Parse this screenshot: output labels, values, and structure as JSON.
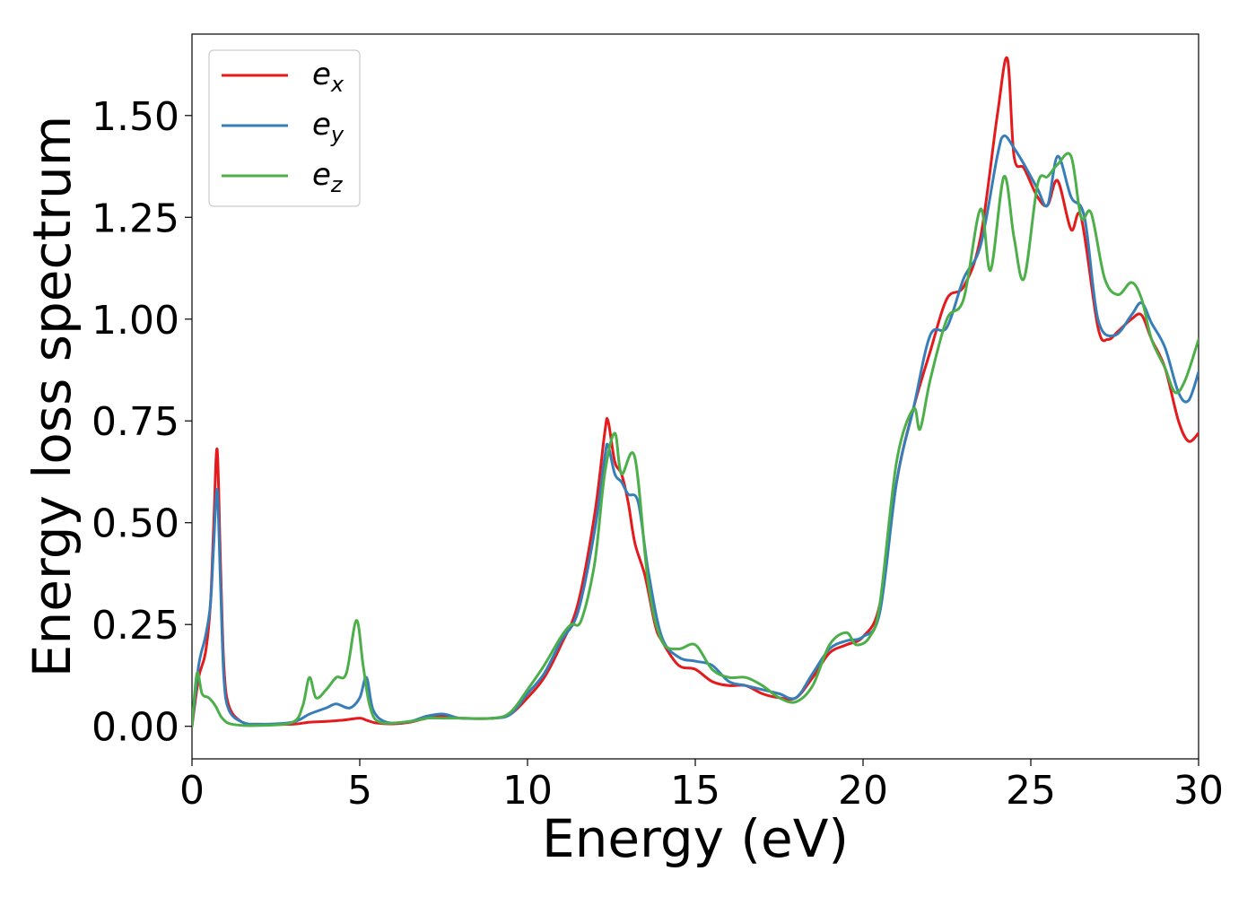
{
  "chart_data": {
    "type": "line",
    "xlabel": "Energy (eV)",
    "ylabel": "Energy loss spectrum",
    "xlim": [
      0,
      30
    ],
    "ylim": [
      -0.08,
      1.7
    ],
    "x_ticks": [
      "0",
      "5",
      "10",
      "15",
      "20",
      "25",
      "30"
    ],
    "y_ticks": [
      "0.00",
      "0.25",
      "0.50",
      "0.75",
      "1.00",
      "1.25",
      "1.50"
    ],
    "grid": false,
    "legend_position": "top-left",
    "series": [
      {
        "name": "e",
        "subscript": "x",
        "color": "#e41a1c",
        "points": [
          [
            0,
            0
          ],
          [
            0.2,
            0.12
          ],
          [
            0.4,
            0.18
          ],
          [
            0.55,
            0.3
          ],
          [
            0.65,
            0.5
          ],
          [
            0.75,
            0.68
          ],
          [
            0.85,
            0.4
          ],
          [
            0.95,
            0.15
          ],
          [
            1.1,
            0.05
          ],
          [
            1.5,
            0.01
          ],
          [
            2,
            0.005
          ],
          [
            3,
            0.005
          ],
          [
            3.5,
            0.01
          ],
          [
            4,
            0.012
          ],
          [
            4.5,
            0.015
          ],
          [
            5,
            0.02
          ],
          [
            5.2,
            0.015
          ],
          [
            5.5,
            0.008
          ],
          [
            6,
            0.006
          ],
          [
            6.5,
            0.01
          ],
          [
            7,
            0.02
          ],
          [
            7.5,
            0.025
          ],
          [
            8,
            0.02
          ],
          [
            9,
            0.02
          ],
          [
            9.5,
            0.03
          ],
          [
            10,
            0.07
          ],
          [
            10.5,
            0.12
          ],
          [
            11,
            0.2
          ],
          [
            11.5,
            0.3
          ],
          [
            12,
            0.52
          ],
          [
            12.3,
            0.72
          ],
          [
            12.4,
            0.75
          ],
          [
            12.6,
            0.65
          ],
          [
            12.8,
            0.62
          ],
          [
            13,
            0.55
          ],
          [
            13.2,
            0.45
          ],
          [
            13.5,
            0.37
          ],
          [
            13.8,
            0.25
          ],
          [
            14,
            0.21
          ],
          [
            14.5,
            0.15
          ],
          [
            15,
            0.14
          ],
          [
            15.5,
            0.11
          ],
          [
            16,
            0.1
          ],
          [
            16.5,
            0.1
          ],
          [
            17,
            0.08
          ],
          [
            17.5,
            0.07
          ],
          [
            18,
            0.07
          ],
          [
            18.5,
            0.12
          ],
          [
            19,
            0.18
          ],
          [
            19.5,
            0.2
          ],
          [
            20,
            0.22
          ],
          [
            20.5,
            0.3
          ],
          [
            21,
            0.6
          ],
          [
            21.5,
            0.78
          ],
          [
            22,
            0.92
          ],
          [
            22.5,
            1.05
          ],
          [
            23,
            1.08
          ],
          [
            23.5,
            1.2
          ],
          [
            24,
            1.5
          ],
          [
            24.3,
            1.64
          ],
          [
            24.5,
            1.4
          ],
          [
            24.8,
            1.37
          ],
          [
            25.2,
            1.3
          ],
          [
            25.5,
            1.28
          ],
          [
            25.8,
            1.34
          ],
          [
            26.2,
            1.22
          ],
          [
            26.5,
            1.25
          ],
          [
            27,
            0.98
          ],
          [
            27.3,
            0.95
          ],
          [
            27.6,
            0.97
          ],
          [
            28,
            1.0
          ],
          [
            28.3,
            1.01
          ],
          [
            28.6,
            0.95
          ],
          [
            29,
            0.88
          ],
          [
            29.4,
            0.75
          ],
          [
            29.7,
            0.7
          ],
          [
            30,
            0.72
          ]
        ]
      },
      {
        "name": "e",
        "subscript": "y",
        "color": "#377eb8",
        "points": [
          [
            0,
            0
          ],
          [
            0.2,
            0.15
          ],
          [
            0.4,
            0.22
          ],
          [
            0.55,
            0.3
          ],
          [
            0.65,
            0.45
          ],
          [
            0.75,
            0.58
          ],
          [
            0.85,
            0.35
          ],
          [
            0.95,
            0.12
          ],
          [
            1.1,
            0.04
          ],
          [
            1.5,
            0.01
          ],
          [
            2,
            0.005
          ],
          [
            3,
            0.01
          ],
          [
            3.5,
            0.03
          ],
          [
            4,
            0.045
          ],
          [
            4.3,
            0.055
          ],
          [
            4.7,
            0.045
          ],
          [
            5,
            0.07
          ],
          [
            5.2,
            0.12
          ],
          [
            5.4,
            0.04
          ],
          [
            5.8,
            0.01
          ],
          [
            6.5,
            0.012
          ],
          [
            7,
            0.025
          ],
          [
            7.5,
            0.03
          ],
          [
            8,
            0.02
          ],
          [
            9,
            0.02
          ],
          [
            9.5,
            0.03
          ],
          [
            10,
            0.08
          ],
          [
            10.5,
            0.13
          ],
          [
            11,
            0.21
          ],
          [
            11.5,
            0.28
          ],
          [
            12,
            0.48
          ],
          [
            12.3,
            0.66
          ],
          [
            12.4,
            0.69
          ],
          [
            12.6,
            0.62
          ],
          [
            12.8,
            0.6
          ],
          [
            13,
            0.57
          ],
          [
            13.3,
            0.55
          ],
          [
            13.6,
            0.38
          ],
          [
            14,
            0.22
          ],
          [
            14.5,
            0.17
          ],
          [
            15,
            0.16
          ],
          [
            15.5,
            0.15
          ],
          [
            16,
            0.11
          ],
          [
            16.5,
            0.1
          ],
          [
            17,
            0.09
          ],
          [
            17.5,
            0.08
          ],
          [
            18,
            0.07
          ],
          [
            18.5,
            0.13
          ],
          [
            19,
            0.19
          ],
          [
            19.5,
            0.21
          ],
          [
            20,
            0.22
          ],
          [
            20.5,
            0.28
          ],
          [
            21,
            0.6
          ],
          [
            21.5,
            0.78
          ],
          [
            22,
            0.96
          ],
          [
            22.5,
            0.98
          ],
          [
            23,
            1.1
          ],
          [
            23.5,
            1.18
          ],
          [
            24,
            1.4
          ],
          [
            24.2,
            1.45
          ],
          [
            24.5,
            1.42
          ],
          [
            24.8,
            1.38
          ],
          [
            25.2,
            1.32
          ],
          [
            25.5,
            1.28
          ],
          [
            25.8,
            1.4
          ],
          [
            26.2,
            1.3
          ],
          [
            26.6,
            1.25
          ],
          [
            27,
            1.0
          ],
          [
            27.5,
            0.96
          ],
          [
            28,
            1.01
          ],
          [
            28.3,
            1.04
          ],
          [
            28.6,
            0.99
          ],
          [
            29,
            0.93
          ],
          [
            29.4,
            0.82
          ],
          [
            29.7,
            0.8
          ],
          [
            30,
            0.87
          ]
        ]
      },
      {
        "name": "e",
        "subscript": "z",
        "color": "#4daf4a",
        "points": [
          [
            0,
            0
          ],
          [
            0.15,
            0.13
          ],
          [
            0.3,
            0.08
          ],
          [
            0.5,
            0.07
          ],
          [
            0.7,
            0.05
          ],
          [
            0.9,
            0.02
          ],
          [
            1.2,
            0.005
          ],
          [
            2,
            0.002
          ],
          [
            3,
            0.01
          ],
          [
            3.3,
            0.05
          ],
          [
            3.5,
            0.12
          ],
          [
            3.7,
            0.07
          ],
          [
            4,
            0.09
          ],
          [
            4.3,
            0.12
          ],
          [
            4.6,
            0.13
          ],
          [
            4.9,
            0.26
          ],
          [
            5.1,
            0.15
          ],
          [
            5.3,
            0.05
          ],
          [
            5.6,
            0.01
          ],
          [
            6.5,
            0.012
          ],
          [
            7,
            0.02
          ],
          [
            7.5,
            0.02
          ],
          [
            8,
            0.02
          ],
          [
            9,
            0.02
          ],
          [
            9.5,
            0.035
          ],
          [
            10,
            0.09
          ],
          [
            10.5,
            0.15
          ],
          [
            11,
            0.22
          ],
          [
            11.3,
            0.25
          ],
          [
            11.6,
            0.26
          ],
          [
            12,
            0.4
          ],
          [
            12.3,
            0.62
          ],
          [
            12.6,
            0.72
          ],
          [
            12.8,
            0.62
          ],
          [
            13.2,
            0.66
          ],
          [
            13.6,
            0.35
          ],
          [
            14,
            0.21
          ],
          [
            14.5,
            0.19
          ],
          [
            15,
            0.2
          ],
          [
            15.5,
            0.14
          ],
          [
            16,
            0.12
          ],
          [
            16.5,
            0.12
          ],
          [
            17,
            0.1
          ],
          [
            17.5,
            0.07
          ],
          [
            18,
            0.06
          ],
          [
            18.5,
            0.1
          ],
          [
            19,
            0.2
          ],
          [
            19.5,
            0.23
          ],
          [
            19.8,
            0.2
          ],
          [
            20.2,
            0.22
          ],
          [
            20.5,
            0.3
          ],
          [
            21,
            0.65
          ],
          [
            21.5,
            0.78
          ],
          [
            21.7,
            0.73
          ],
          [
            22,
            0.85
          ],
          [
            22.5,
            1.0
          ],
          [
            23,
            1.05
          ],
          [
            23.5,
            1.27
          ],
          [
            23.8,
            1.12
          ],
          [
            24.2,
            1.35
          ],
          [
            24.5,
            1.2
          ],
          [
            24.8,
            1.1
          ],
          [
            25.2,
            1.33
          ],
          [
            25.5,
            1.35
          ],
          [
            25.8,
            1.38
          ],
          [
            26.2,
            1.4
          ],
          [
            26.5,
            1.25
          ],
          [
            26.8,
            1.26
          ],
          [
            27.2,
            1.1
          ],
          [
            27.6,
            1.06
          ],
          [
            28,
            1.09
          ],
          [
            28.3,
            1.05
          ],
          [
            28.6,
            0.95
          ],
          [
            29,
            0.88
          ],
          [
            29.3,
            0.82
          ],
          [
            29.6,
            0.85
          ],
          [
            30,
            0.95
          ]
        ]
      }
    ]
  }
}
